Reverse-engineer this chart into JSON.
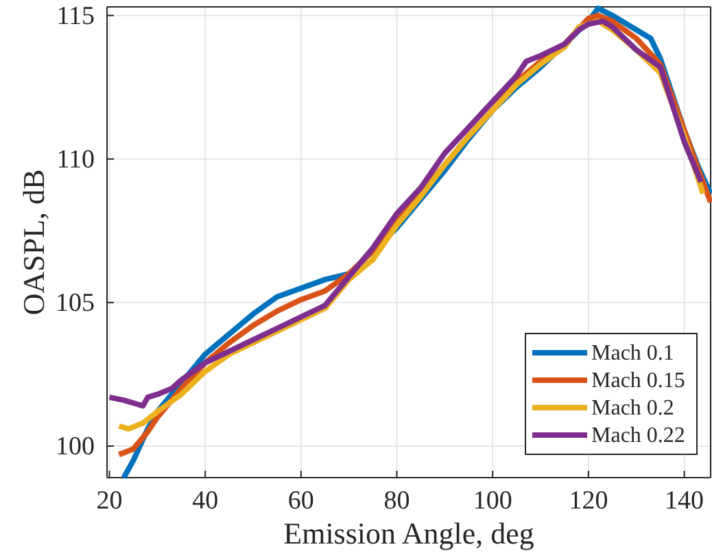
{
  "chart_data": {
    "type": "line",
    "xlabel": "Emission Angle, deg",
    "ylabel": "OASPL, dB",
    "xlim": [
      19.5,
      145.5
    ],
    "ylim": [
      98.9,
      115.3
    ],
    "xticks": [
      20,
      40,
      60,
      80,
      100,
      120,
      140
    ],
    "yticks": [
      100,
      105,
      110,
      115
    ],
    "grid": true,
    "legend": "bottom right",
    "marker": "none",
    "line_style": "solid",
    "series": [
      {
        "name": "Mach 0.1",
        "color": "#0072bd",
        "x": [
          23,
          25,
          28,
          30,
          35,
          40,
          45,
          50,
          55,
          60,
          65,
          70,
          75,
          80,
          85,
          90,
          95,
          100,
          105,
          110,
          115,
          120,
          122,
          125,
          130,
          133,
          135,
          138,
          140,
          143,
          145.5
        ],
        "values": [
          98.9,
          99.5,
          100.6,
          101.2,
          102.2,
          103.2,
          103.9,
          104.6,
          105.2,
          105.5,
          105.8,
          106.0,
          106.8,
          107.6,
          108.6,
          109.6,
          110.7,
          111.7,
          112.5,
          113.2,
          114.0,
          114.8,
          115.25,
          115.0,
          114.5,
          114.2,
          113.5,
          112.0,
          111.0,
          109.7,
          108.8
        ]
      },
      {
        "name": "Mach 0.15",
        "color": "#d95319",
        "x": [
          22,
          25,
          28,
          30,
          35,
          40,
          45,
          50,
          55,
          60,
          65,
          70,
          75,
          80,
          85,
          90,
          95,
          100,
          105,
          110,
          115,
          120,
          122,
          125,
          130,
          135,
          140,
          143,
          145.5
        ],
        "values": [
          99.7,
          99.9,
          100.5,
          101.0,
          102.0,
          102.9,
          103.6,
          104.2,
          104.7,
          105.1,
          105.4,
          106.0,
          106.8,
          107.8,
          108.8,
          109.8,
          110.8,
          111.7,
          112.7,
          113.4,
          114.0,
          114.9,
          115.0,
          114.8,
          114.2,
          113.3,
          111.0,
          109.6,
          108.5
        ]
      },
      {
        "name": "Mach 0.2",
        "color": "#edb120",
        "x": [
          22,
          24,
          27,
          30,
          35,
          40,
          45,
          50,
          55,
          60,
          65,
          68,
          70,
          75,
          80,
          85,
          90,
          95,
          100,
          105,
          110,
          115,
          118,
          120,
          122,
          125,
          130,
          135,
          140,
          143.9
        ],
        "values": [
          100.7,
          100.6,
          100.8,
          101.2,
          101.8,
          102.6,
          103.2,
          103.6,
          104.0,
          104.4,
          104.8,
          105.4,
          105.8,
          106.5,
          107.7,
          108.7,
          109.8,
          110.8,
          111.7,
          112.6,
          113.3,
          113.9,
          114.6,
          114.7,
          114.8,
          114.5,
          113.8,
          113.0,
          110.8,
          108.8
        ]
      },
      {
        "name": "Mach 0.22",
        "color": "#7e2f8e",
        "x": [
          20,
          23,
          25,
          27,
          28,
          30,
          33,
          35,
          40,
          45,
          50,
          55,
          60,
          65,
          70,
          75,
          80,
          85,
          90,
          95,
          100,
          105,
          107,
          110,
          115,
          118,
          120,
          123,
          125,
          130,
          135,
          140,
          143.5
        ],
        "values": [
          101.7,
          101.6,
          101.5,
          101.4,
          101.7,
          101.8,
          102.0,
          102.3,
          102.9,
          103.3,
          103.7,
          104.1,
          104.5,
          104.9,
          105.9,
          106.9,
          108.1,
          109.0,
          110.2,
          111.1,
          112.0,
          112.9,
          113.4,
          113.6,
          114.0,
          114.5,
          114.7,
          114.8,
          114.6,
          113.8,
          113.2,
          110.6,
          109.2
        ]
      }
    ]
  }
}
